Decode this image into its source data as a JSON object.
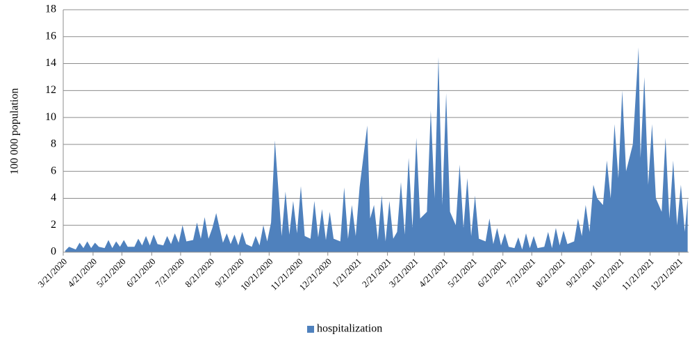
{
  "chart_data": {
    "type": "area",
    "ylabel": "100 000 population",
    "series": [
      {
        "name": "hospitalization",
        "color": "#4f81bd",
        "values": [
          0.1,
          0.4,
          0.2,
          0.7,
          0.3,
          0.8,
          0.3,
          0.7,
          0.4,
          0.3,
          0.9,
          0.3,
          0.8,
          0.4,
          0.9,
          0.4,
          0.4,
          1.0,
          0.5,
          1.2,
          0.5,
          1.3,
          0.6,
          0.5,
          1.2,
          0.6,
          1.4,
          0.7,
          2.0,
          0.8,
          0.9,
          2.2,
          1.0,
          2.6,
          1.0,
          1.8,
          2.9,
          0.7,
          1.4,
          0.6,
          1.3,
          0.5,
          1.5,
          0.6,
          0.4,
          1.2,
          0.5,
          2.0,
          0.8,
          2.2,
          8.3,
          1.2,
          4.5,
          1.3,
          3.8,
          1.4,
          4.9,
          1.2,
          1.0,
          3.8,
          1.1,
          3.2,
          0.9,
          3.0,
          1.0,
          0.8,
          4.8,
          1.0,
          3.5,
          1.2,
          4.8,
          9.4,
          2.5,
          3.5,
          0.9,
          4.2,
          0.8,
          3.8,
          1.0,
          1.5,
          5.2,
          1.3,
          7.0,
          1.8,
          8.5,
          2.5,
          3.0,
          10.5,
          4.0,
          14.5,
          3.5,
          11.8,
          3.0,
          2.0,
          6.5,
          1.8,
          5.5,
          1.2,
          4.2,
          1.0,
          0.8,
          2.5,
          0.6,
          1.8,
          0.5,
          1.4,
          0.4,
          0.3,
          1.1,
          0.2,
          1.4,
          0.3,
          1.2,
          0.3,
          0.4,
          1.5,
          0.3,
          1.8,
          0.5,
          1.6,
          0.6,
          0.8,
          2.5,
          1.2,
          3.5,
          1.5,
          5.0,
          4.0,
          3.5,
          6.8,
          4.0,
          9.5,
          5.5,
          12.0,
          6.0,
          8.0,
          15.2,
          7.0,
          13.0,
          5.0,
          9.5,
          4.0,
          3.0,
          8.5,
          2.5,
          6.8,
          2.0,
          5.0,
          1.5,
          4.0
        ]
      }
    ],
    "x": [
      "3/23/2020",
      "3/27/2020",
      "4/3/2020",
      "4/7/2020",
      "4/11/2020",
      "4/15/2020",
      "4/19/2020",
      "4/23/2020",
      "4/27/2020",
      "5/3/2020",
      "5/7/2020",
      "5/11/2020",
      "5/15/2020",
      "5/19/2020",
      "5/23/2020",
      "5/27/2020",
      "6/3/2020",
      "6/7/2020",
      "6/11/2020",
      "6/15/2020",
      "6/19/2020",
      "6/23/2020",
      "6/27/2020",
      "7/3/2020",
      "7/7/2020",
      "7/11/2020",
      "7/15/2020",
      "7/19/2020",
      "7/23/2020",
      "7/27/2020",
      "8/3/2020",
      "8/7/2020",
      "8/11/2020",
      "8/15/2020",
      "8/19/2020",
      "8/23/2020",
      "8/27/2020",
      "9/3/2020",
      "9/7/2020",
      "9/11/2020",
      "9/15/2020",
      "9/19/2020",
      "9/23/2020",
      "9/27/2020",
      "10/3/2020",
      "10/7/2020",
      "10/11/2020",
      "10/15/2020",
      "10/19/2020",
      "10/23/2020",
      "10/27/2020",
      "11/3/2020",
      "11/7/2020",
      "11/11/2020",
      "11/15/2020",
      "11/19/2020",
      "11/23/2020",
      "11/27/2020",
      "12/3/2020",
      "12/7/2020",
      "12/11/2020",
      "12/15/2020",
      "12/19/2020",
      "12/23/2020",
      "12/27/2020",
      "1/3/2021",
      "1/7/2021",
      "1/11/2021",
      "1/15/2021",
      "1/19/2021",
      "1/23/2021",
      "1/31/2021",
      "2/3/2021",
      "2/7/2021",
      "2/11/2021",
      "2/15/2021",
      "2/19/2021",
      "2/23/2021",
      "2/27/2021",
      "3/3/2021",
      "3/7/2021",
      "3/11/2021",
      "3/15/2021",
      "3/19/2021",
      "3/23/2021",
      "3/27/2021",
      "4/3/2021",
      "4/7/2021",
      "4/11/2021",
      "4/15/2021",
      "4/19/2021",
      "4/23/2021",
      "4/27/2021",
      "5/3/2021",
      "5/7/2021",
      "5/11/2021",
      "5/15/2021",
      "5/19/2021",
      "5/23/2021",
      "5/27/2021",
      "6/3/2021",
      "6/7/2021",
      "6/11/2021",
      "6/15/2021",
      "6/19/2021",
      "6/23/2021",
      "6/27/2021",
      "7/3/2021",
      "7/7/2021",
      "7/11/2021",
      "7/15/2021",
      "7/19/2021",
      "7/23/2021",
      "7/27/2021",
      "8/3/2021",
      "8/7/2021",
      "8/11/2021",
      "8/15/2021",
      "8/19/2021",
      "8/23/2021",
      "8/27/2021",
      "9/3/2021",
      "9/7/2021",
      "9/11/2021",
      "9/15/2021",
      "9/19/2021",
      "9/23/2021",
      "9/27/2021",
      "10/3/2021",
      "10/7/2021",
      "10/11/2021",
      "10/15/2021",
      "10/19/2021",
      "10/23/2021",
      "10/27/2021",
      "11/3/2021",
      "11/9/2021",
      "11/11/2021",
      "11/15/2021",
      "11/19/2021",
      "11/23/2021",
      "11/27/2021",
      "12/3/2021",
      "12/7/2021",
      "12/11/2021",
      "12/15/2021",
      "12/19/2021",
      "12/23/2021",
      "12/27/2021",
      "12/30/2021"
    ],
    "xlim": [
      "3/21/2020",
      "12/31/2021"
    ],
    "xticks": [
      "3/21/2020",
      "4/21/2020",
      "5/21/2020",
      "6/21/2020",
      "7/21/2020",
      "8/21/2020",
      "9/21/2020",
      "10/21/2020",
      "11/21/2020",
      "12/21/2020",
      "1/21/2021",
      "2/21/2021",
      "3/21/2021",
      "4/21/2021",
      "5/21/2021",
      "6/21/2021",
      "7/21/2021",
      "8/21/2021",
      "9/21/2021",
      "10/21/2021",
      "11/21/2021",
      "12/21/2021"
    ],
    "ylim": [
      0,
      18
    ],
    "yticks": [
      0,
      2,
      4,
      6,
      8,
      10,
      12,
      14,
      16,
      18
    ],
    "grid": true,
    "legend": "bottom"
  }
}
